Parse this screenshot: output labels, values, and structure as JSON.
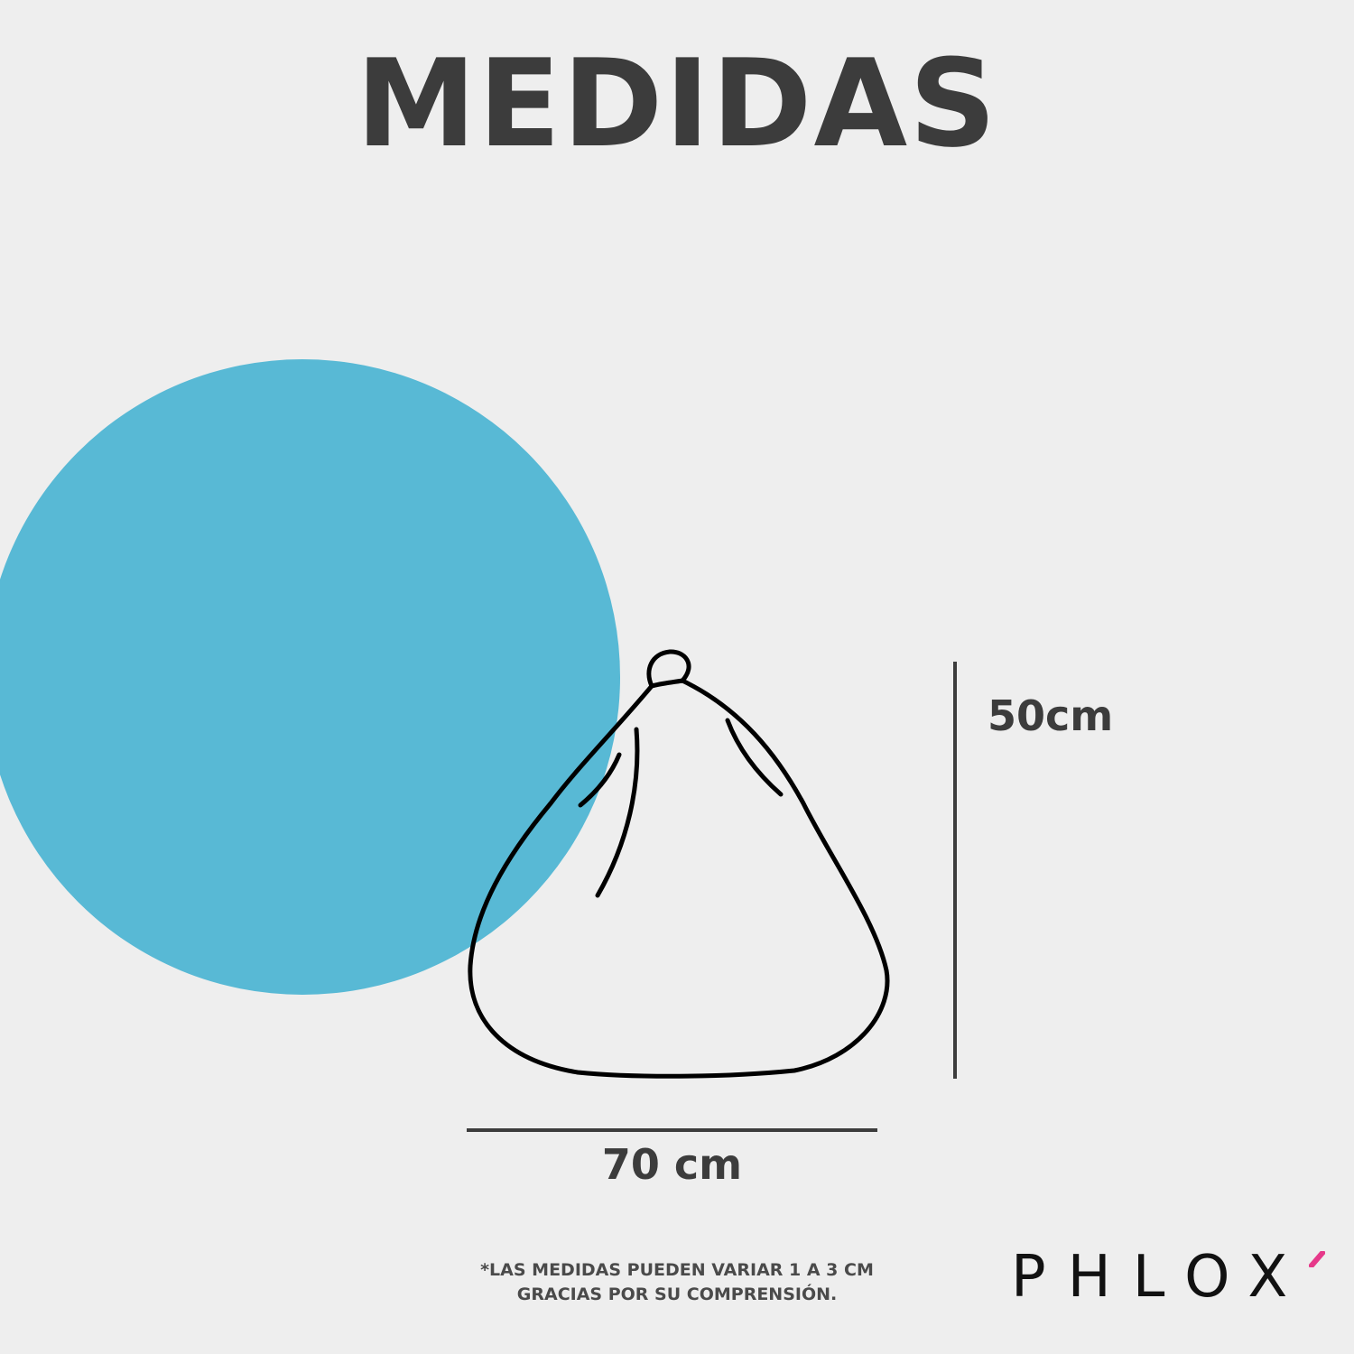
{
  "title": "MEDIDAS",
  "dimensions": {
    "height_label": "50cm",
    "width_label": "70 cm"
  },
  "note": {
    "line1": "*LAS MEDIDAS PUEDEN VARIAR 1 A 3 CM",
    "line2": "GRACIAS POR SU COMPRENSIÓN."
  },
  "brand": {
    "logo_text": "PHLOX",
    "accent_color": "#e6398a"
  },
  "colors": {
    "background": "#eeeeee",
    "circle": "#58b9d5",
    "text": "#3c3c3c"
  },
  "icons": [
    "bean-bag-outline-icon"
  ]
}
